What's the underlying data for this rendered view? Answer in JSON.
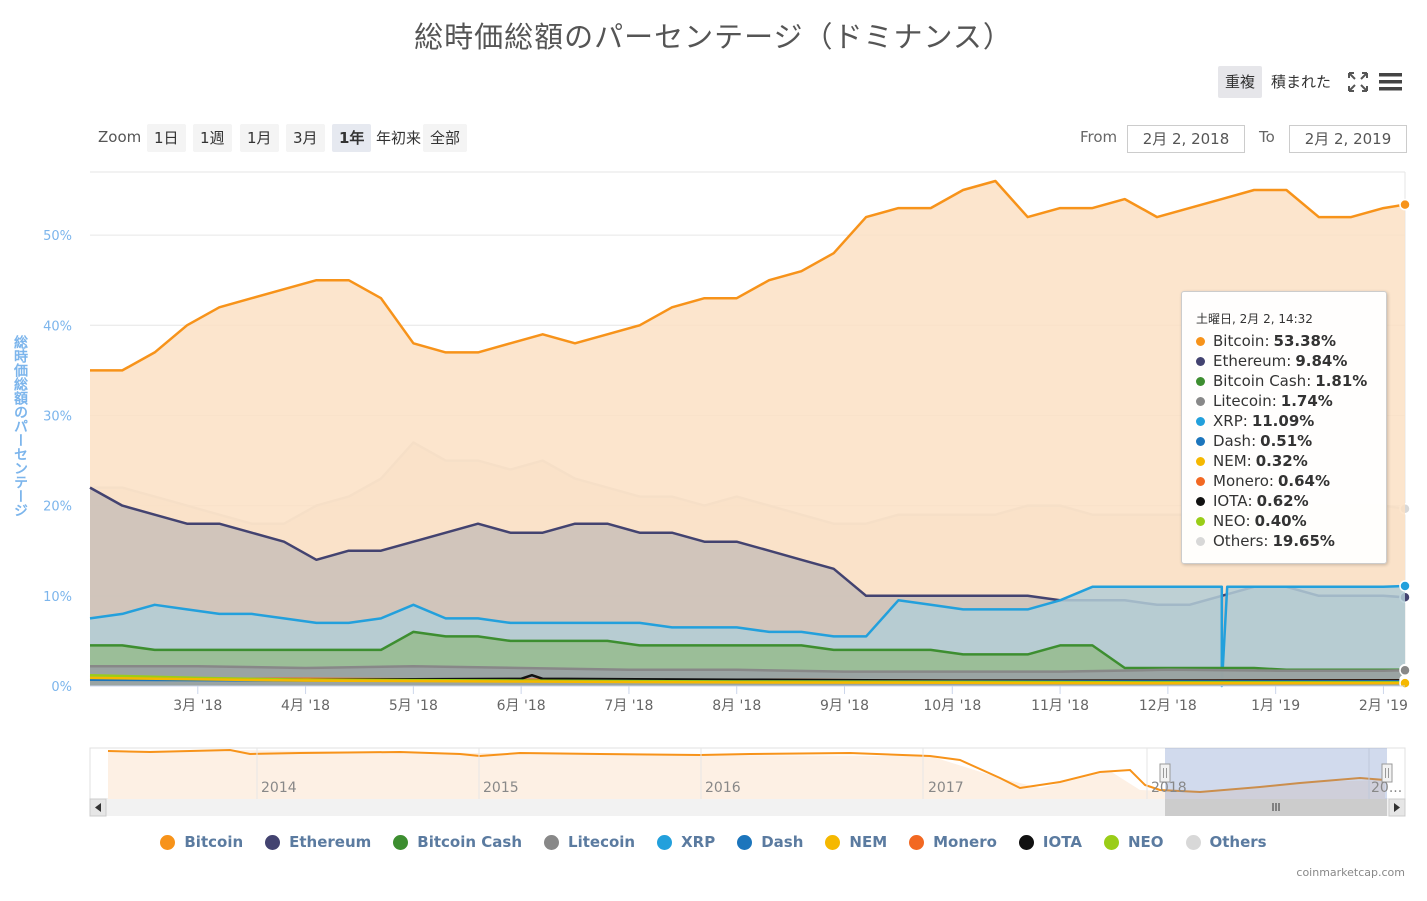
{
  "title": "総時価総額のパーセンテージ（ドミナンス）",
  "chart_modes": [
    {
      "label": "重複",
      "active": true
    },
    {
      "label": "積まれた",
      "active": false
    }
  ],
  "icons": [
    "fullscreen-icon",
    "menu-icon"
  ],
  "zoom": {
    "label": "Zoom",
    "buttons": [
      {
        "label": "1日",
        "active": false,
        "plain": false
      },
      {
        "label": "1週",
        "active": false,
        "plain": false
      },
      {
        "label": "1月",
        "active": false,
        "plain": false
      },
      {
        "label": "3月",
        "active": false,
        "plain": false
      },
      {
        "label": "1年",
        "active": true,
        "plain": false
      },
      {
        "label": "年初来",
        "active": false,
        "plain": true
      },
      {
        "label": "全部",
        "active": false,
        "plain": false
      }
    ]
  },
  "range": {
    "from_label": "From",
    "from_value": "2月 2, 2018",
    "to_label": "To",
    "to_value": "2月 2, 2019"
  },
  "tooltip": {
    "header": "土曜日, 2月 2, 14:32",
    "rows": [
      {
        "name": "Bitcoin",
        "value": "53.38%",
        "color": "#f7931a"
      },
      {
        "name": "Ethereum",
        "value": "9.84%",
        "color": "#434370"
      },
      {
        "name": "Bitcoin Cash",
        "value": "1.81%",
        "color": "#3d8e30"
      },
      {
        "name": "Litecoin",
        "value": "1.74%",
        "color": "#888888"
      },
      {
        "name": "XRP",
        "value": "11.09%",
        "color": "#23a0dc"
      },
      {
        "name": "Dash",
        "value": "0.51%",
        "color": "#1c75bc"
      },
      {
        "name": "NEM",
        "value": "0.32%",
        "color": "#f5b800"
      },
      {
        "name": "Monero",
        "value": "0.64%",
        "color": "#f26822"
      },
      {
        "name": "IOTA",
        "value": "0.62%",
        "color": "#111111"
      },
      {
        "name": "NEO",
        "value": "0.40%",
        "color": "#9acd18"
      },
      {
        "name": "Others",
        "value": "19.65%",
        "color": "#d8d8d8"
      }
    ]
  },
  "navigator": {
    "year_labels": [
      "2014",
      "2015",
      "2016",
      "2017",
      "2018",
      "20..."
    ]
  },
  "credit": "coinmarketcap.com",
  "chart_data": {
    "type": "area",
    "title": "総時価総額のパーセンテージ（ドミナンス）",
    "ylabel": "総時価総額のパーセンテージ",
    "xlabel": "",
    "ylim": [
      0,
      57
    ],
    "y_ticks": [
      "0%",
      "10%",
      "20%",
      "30%",
      "40%",
      "50%"
    ],
    "y_tick_values": [
      0,
      10,
      20,
      30,
      40,
      50
    ],
    "x_ticks": [
      "3月 '18",
      "4月 '18",
      "5月 '18",
      "6月 '18",
      "7月 '18",
      "8月 '18",
      "9月 '18",
      "10月 '18",
      "11月 '18",
      "12月 '18",
      "1月 '19",
      "2月 '19"
    ],
    "x_tick_positions": [
      1,
      2,
      3,
      4,
      5,
      6,
      7,
      8,
      9,
      10,
      11,
      12
    ],
    "xlim": [
      0.0,
      12.2
    ],
    "grid": true,
    "legend_position": "bottom",
    "series": [
      {
        "name": "Others",
        "color": "#d8d8d8",
        "fill": "#ece4da",
        "x": [
          0.0,
          0.3,
          0.6,
          0.9,
          1.2,
          1.5,
          1.8,
          2.1,
          2.4,
          2.7,
          3.0,
          3.3,
          3.6,
          3.9,
          4.2,
          4.5,
          4.8,
          5.1,
          5.4,
          5.7,
          6.0,
          6.3,
          6.6,
          6.9,
          7.2,
          7.5,
          7.8,
          8.1,
          8.4,
          8.7,
          9.0,
          9.3,
          9.6,
          9.9,
          10.2,
          10.5,
          10.8,
          11.1,
          11.4,
          11.7,
          12.0,
          12.2
        ],
        "y": [
          22,
          22,
          21,
          20,
          19,
          18,
          18,
          20,
          21,
          23,
          27,
          25,
          25,
          24,
          25,
          23,
          22,
          21,
          21,
          20,
          21,
          20,
          19,
          18,
          18,
          19,
          19,
          19,
          19,
          20,
          20,
          19,
          19,
          19,
          19,
          20,
          20,
          20,
          20,
          20,
          20,
          19.65
        ]
      },
      {
        "name": "Bitcoin",
        "color": "#f7931a",
        "fill": "#fbe1c4",
        "x": [
          0.0,
          0.3,
          0.6,
          0.9,
          1.2,
          1.5,
          1.8,
          2.1,
          2.4,
          2.7,
          3.0,
          3.3,
          3.6,
          3.9,
          4.2,
          4.5,
          4.8,
          5.1,
          5.4,
          5.7,
          6.0,
          6.3,
          6.6,
          6.9,
          7.2,
          7.5,
          7.8,
          8.1,
          8.4,
          8.7,
          9.0,
          9.3,
          9.6,
          9.9,
          10.2,
          10.5,
          10.8,
          11.1,
          11.4,
          11.7,
          12.0,
          12.2
        ],
        "y": [
          35,
          35,
          37,
          40,
          42,
          43,
          44,
          45,
          45,
          43,
          38,
          37,
          37,
          38,
          39,
          38,
          39,
          40,
          42,
          43,
          43,
          45,
          46,
          48,
          52,
          53,
          53,
          55,
          56,
          52,
          53,
          53,
          54,
          52,
          53,
          54,
          55,
          55,
          52,
          52,
          53,
          53.38
        ]
      },
      {
        "name": "Ethereum",
        "color": "#434370",
        "fill": "#c9c0b8",
        "x": [
          0.0,
          0.3,
          0.6,
          0.9,
          1.2,
          1.5,
          1.8,
          2.1,
          2.4,
          2.7,
          3.0,
          3.3,
          3.6,
          3.9,
          4.2,
          4.5,
          4.8,
          5.1,
          5.4,
          5.7,
          6.0,
          6.3,
          6.6,
          6.9,
          7.2,
          7.5,
          7.8,
          8.1,
          8.4,
          8.7,
          9.0,
          9.3,
          9.6,
          9.9,
          10.2,
          10.5,
          10.8,
          11.1,
          11.4,
          11.7,
          12.0,
          12.2
        ],
        "y": [
          22,
          20,
          19,
          18,
          18,
          17,
          16,
          14,
          15,
          15,
          16,
          17,
          18,
          17,
          17,
          18,
          18,
          17,
          17,
          16,
          16,
          15,
          14,
          13,
          10,
          10,
          10,
          10,
          10,
          10,
          9.5,
          9.5,
          9.5,
          9,
          9,
          10,
          11,
          11,
          10,
          10,
          10,
          9.84
        ]
      },
      {
        "name": "XRP",
        "color": "#23a0dc",
        "fill": "#b3cdd6",
        "x": [
          0.0,
          0.3,
          0.6,
          0.9,
          1.2,
          1.5,
          1.8,
          2.1,
          2.4,
          2.7,
          3.0,
          3.3,
          3.6,
          3.9,
          4.2,
          4.5,
          4.8,
          5.1,
          5.4,
          5.7,
          6.0,
          6.3,
          6.6,
          6.9,
          7.2,
          7.5,
          7.8,
          8.1,
          8.4,
          8.7,
          9.0,
          9.3,
          9.6,
          9.9,
          10.2,
          10.5,
          10.5,
          10.55,
          10.6,
          10.9,
          11.2,
          11.6,
          12.0,
          12.2
        ],
        "y": [
          7.5,
          8,
          9,
          8.5,
          8,
          8,
          7.5,
          7,
          7,
          7.5,
          9,
          7.5,
          7.5,
          7,
          7,
          7,
          7,
          7,
          6.5,
          6.5,
          6.5,
          6,
          6,
          5.5,
          5.5,
          9.5,
          9,
          8.5,
          8.5,
          8.5,
          9.5,
          11,
          11,
          11,
          11,
          11,
          0,
          11,
          11,
          11,
          11,
          11,
          11,
          11.09
        ]
      },
      {
        "name": "Bitcoin Cash",
        "color": "#3d8e30",
        "fill": "#97bb8e",
        "x": [
          0.0,
          0.3,
          0.6,
          0.9,
          1.2,
          1.5,
          1.8,
          2.1,
          2.4,
          2.7,
          3.0,
          3.3,
          3.6,
          3.9,
          4.2,
          4.5,
          4.8,
          5.1,
          5.4,
          5.7,
          6.0,
          6.3,
          6.6,
          6.9,
          7.2,
          7.5,
          7.8,
          8.1,
          8.4,
          8.7,
          9.0,
          9.3,
          9.6,
          9.9,
          10.2,
          10.5,
          10.8,
          11.1,
          11.4,
          11.7,
          12.0,
          12.2
        ],
        "y": [
          4.5,
          4.5,
          4,
          4,
          4,
          4,
          4,
          4,
          4,
          4,
          6,
          5.5,
          5.5,
          5,
          5,
          5,
          5,
          4.5,
          4.5,
          4.5,
          4.5,
          4.5,
          4.5,
          4,
          4,
          4,
          4,
          3.5,
          3.5,
          3.5,
          4.5,
          4.5,
          2,
          2,
          2,
          2,
          2,
          1.8,
          1.8,
          1.8,
          1.8,
          1.81
        ]
      },
      {
        "name": "Litecoin",
        "color": "#888888",
        "fill": "#9aa0a4",
        "x": [
          0.0,
          1.0,
          2.0,
          3.0,
          4.0,
          5.0,
          6.0,
          7.0,
          8.0,
          9.0,
          10.0,
          11.0,
          12.0,
          12.2
        ],
        "y": [
          2.2,
          2.2,
          2.0,
          2.2,
          2.0,
          1.8,
          1.8,
          1.6,
          1.6,
          1.6,
          1.8,
          1.7,
          1.7,
          1.74
        ]
      },
      {
        "name": "Monero",
        "color": "#f26822",
        "fill": "none",
        "x": [
          0.0,
          2.0,
          4.0,
          6.0,
          8.0,
          10.0,
          12.2
        ],
        "y": [
          0.8,
          0.8,
          0.7,
          0.7,
          0.6,
          0.6,
          0.64
        ]
      },
      {
        "name": "IOTA",
        "color": "#111111",
        "fill": "none",
        "x": [
          0.0,
          2.0,
          4.0,
          4.1,
          4.2,
          6.0,
          8.0,
          10.0,
          12.2
        ],
        "y": [
          0.8,
          0.7,
          0.8,
          1.2,
          0.8,
          0.7,
          0.6,
          0.6,
          0.62
        ]
      },
      {
        "name": "Dash",
        "color": "#1c75bc",
        "fill": "none",
        "x": [
          0.0,
          2.0,
          4.0,
          6.0,
          8.0,
          10.0,
          12.2
        ],
        "y": [
          0.7,
          0.6,
          0.6,
          0.5,
          0.5,
          0.5,
          0.51
        ]
      },
      {
        "name": "NEO",
        "color": "#9acd18",
        "fill": "none",
        "x": [
          0.0,
          1.0,
          2.0,
          4.0,
          6.0,
          8.0,
          10.0,
          12.2
        ],
        "y": [
          1.2,
          0.9,
          0.7,
          0.6,
          0.5,
          0.45,
          0.4,
          0.4
        ]
      },
      {
        "name": "NEM",
        "color": "#f5b800",
        "fill": "none",
        "x": [
          0.0,
          2.0,
          4.0,
          6.0,
          8.0,
          10.0,
          12.2
        ],
        "y": [
          0.9,
          0.6,
          0.5,
          0.4,
          0.35,
          0.3,
          0.32
        ]
      }
    ]
  },
  "legend": [
    {
      "name": "Bitcoin",
      "color": "#f7931a"
    },
    {
      "name": "Ethereum",
      "color": "#434370"
    },
    {
      "name": "Bitcoin Cash",
      "color": "#3d8e30"
    },
    {
      "name": "Litecoin",
      "color": "#888888"
    },
    {
      "name": "XRP",
      "color": "#23a0dc"
    },
    {
      "name": "Dash",
      "color": "#1c75bc"
    },
    {
      "name": "NEM",
      "color": "#f5b800"
    },
    {
      "name": "Monero",
      "color": "#f26822"
    },
    {
      "name": "IOTA",
      "color": "#111111"
    },
    {
      "name": "NEO",
      "color": "#9acd18"
    },
    {
      "name": "Others",
      "color": "#d8d8d8"
    }
  ]
}
